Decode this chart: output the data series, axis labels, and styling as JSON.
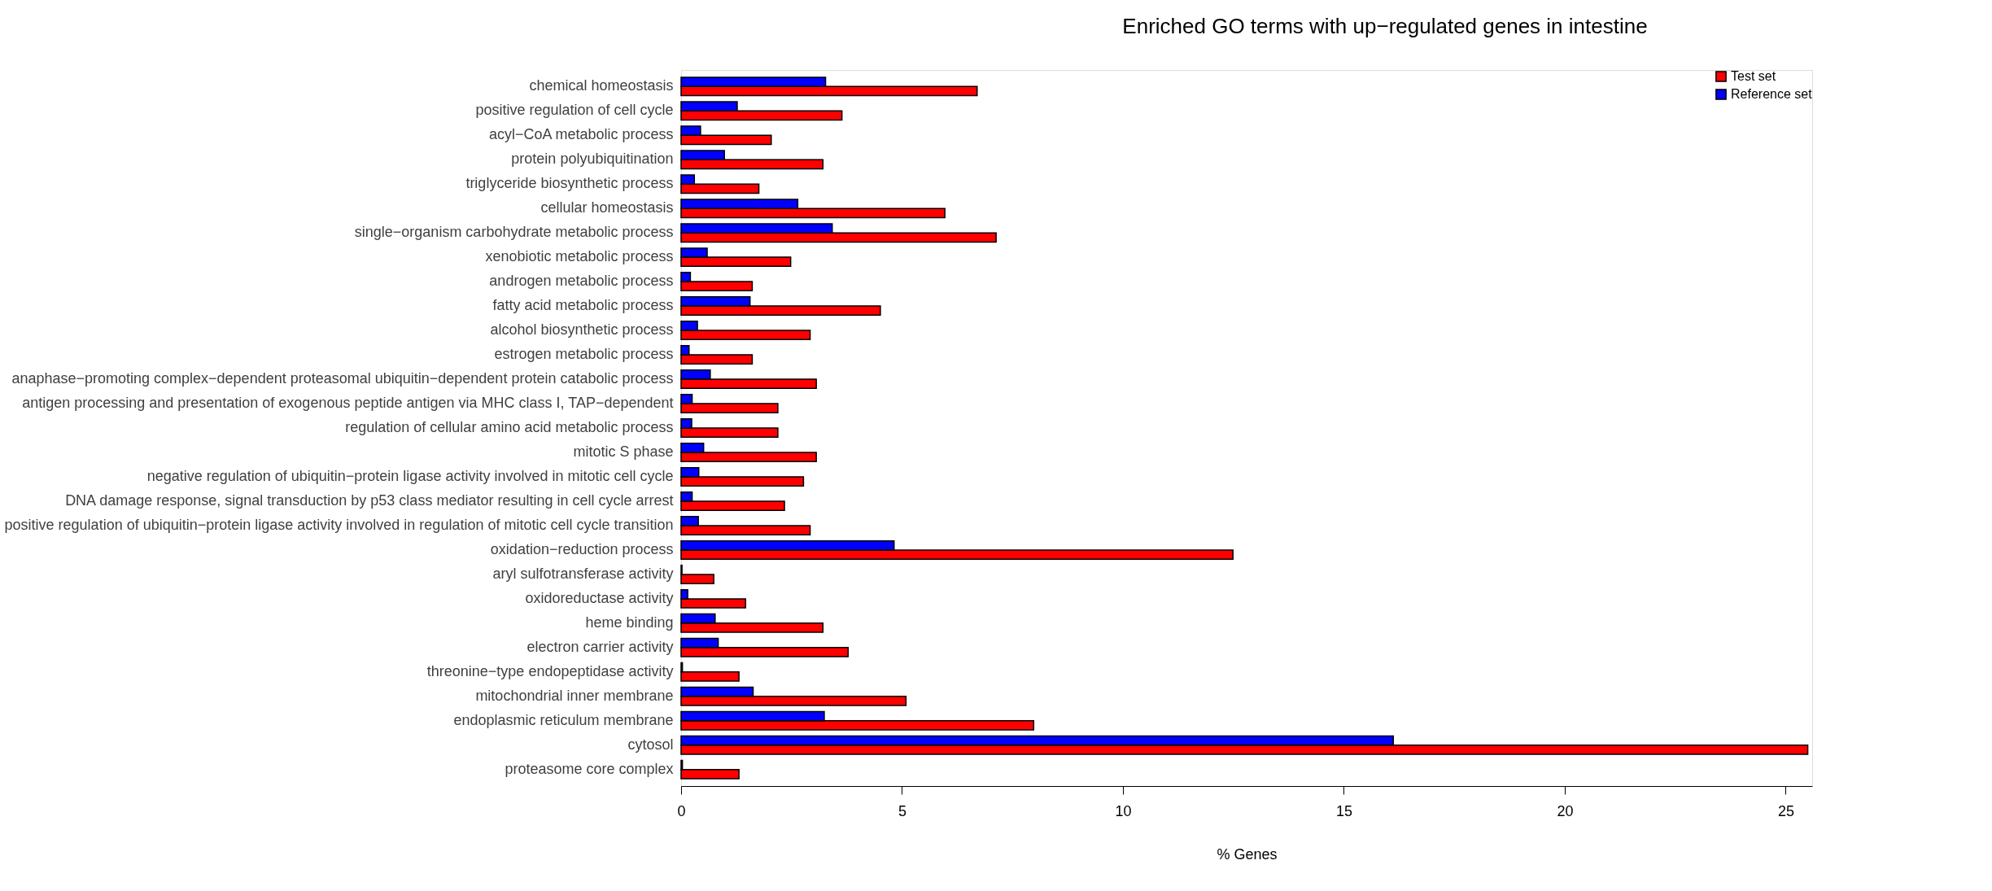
{
  "chart_data": {
    "type": "bar",
    "orientation": "horizontal",
    "title": "Enriched GO terms with up−regulated genes in intestine",
    "xlabel": "% Genes",
    "categories": [
      "chemical homeostasis",
      "positive regulation of cell cycle",
      "acyl−CoA metabolic process",
      "protein polyubiquitination",
      "triglyceride biosynthetic process",
      "cellular homeostasis",
      "single−organism carbohydrate metabolic process",
      "xenobiotic metabolic process",
      "androgen metabolic process",
      "fatty acid metabolic process",
      "alcohol biosynthetic process",
      "estrogen metabolic process",
      "anaphase−promoting complex−dependent proteasomal ubiquitin−dependent protein catabolic process",
      "antigen processing and presentation of exogenous peptide antigen via MHC class I, TAP−dependent",
      "regulation of cellular amino acid metabolic process",
      "mitotic S phase",
      "negative regulation of ubiquitin−protein ligase activity involved in mitotic cell cycle",
      "DNA damage response, signal transduction by p53 class mediator resulting in cell cycle arrest",
      "positive regulation of ubiquitin−protein ligase activity involved in regulation of mitotic cell cycle transition",
      "oxidation−reduction process",
      "aryl sulfotransferase activity",
      "oxidoreductase activity",
      "heme binding",
      "electron carrier activity",
      "threonine−type endopeptidase activity",
      "mitochondrial inner membrane",
      "endoplasmic reticulum membrane",
      "cytosol",
      "proteasome core complex"
    ],
    "series": [
      {
        "name": "Test set",
        "color": "#ff0000",
        "values": [
          6.7,
          3.64,
          2.04,
          3.21,
          1.76,
          5.97,
          7.13,
          2.48,
          1.61,
          4.51,
          2.92,
          1.61,
          3.06,
          2.19,
          2.19,
          3.06,
          2.77,
          2.34,
          2.92,
          12.49,
          0.74,
          1.46,
          3.21,
          3.78,
          1.31,
          5.09,
          7.98,
          25.5,
          1.31
        ]
      },
      {
        "name": "Reference set",
        "color": "#0000ff",
        "values": [
          3.27,
          1.27,
          0.44,
          0.98,
          0.3,
          2.64,
          3.42,
          0.59,
          0.21,
          1.56,
          0.37,
          0.18,
          0.66,
          0.25,
          0.24,
          0.51,
          0.4,
          0.25,
          0.39,
          4.82,
          0.02,
          0.15,
          0.77,
          0.84,
          0.03,
          1.63,
          3.24,
          16.12,
          0.03
        ]
      }
    ],
    "xlim": [
      0,
      25.6
    ],
    "xticks": [
      0,
      5,
      10,
      15,
      20,
      25
    ],
    "grid": false,
    "legend": "top right"
  }
}
